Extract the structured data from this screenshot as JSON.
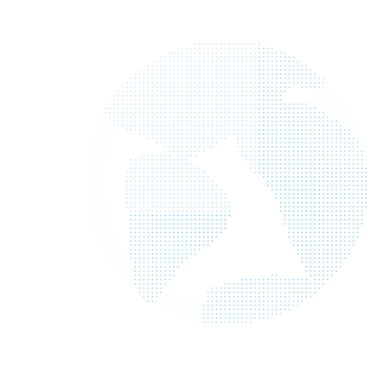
{
  "graphic": {
    "icon": "dotted-globe-icon",
    "colors": {
      "background": "#ffffff",
      "dot_light": "#cfe9f8",
      "dot_mid": "#aedcf4",
      "dot_strong": "#8fcdee"
    }
  }
}
